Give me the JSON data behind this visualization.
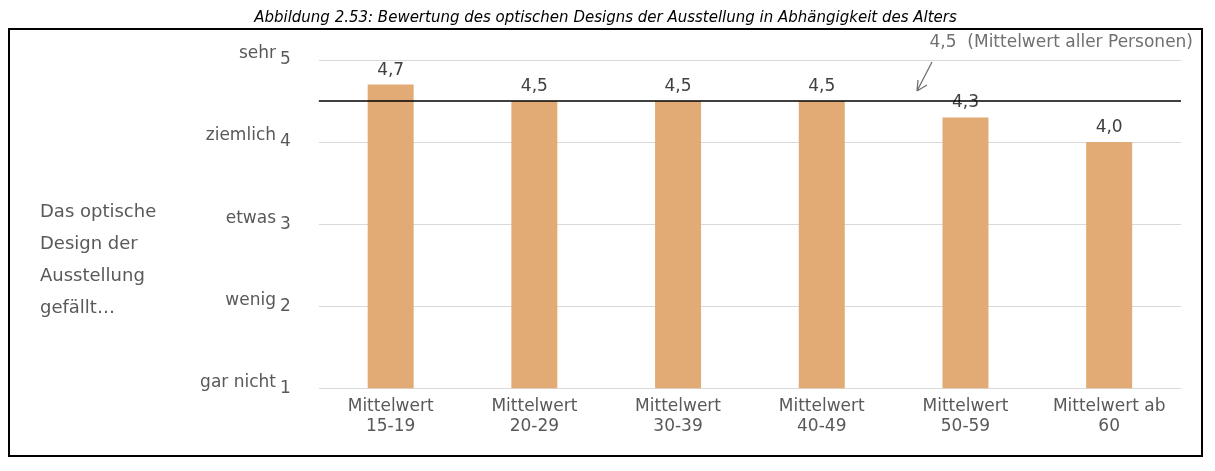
{
  "chart_data": {
    "type": "bar",
    "title": "Abbildung 2.53: Bewertung des optischen Designs der Ausstellung in Abhängigkeit des Alters",
    "categories": [
      "Mittelwert 15-19",
      "Mittelwert 20-29",
      "Mittelwert 30-39",
      "Mittelwert 40-49",
      "Mittelwert 50-59",
      "Mittelwert ab 60"
    ],
    "values": [
      4.7,
      4.5,
      4.5,
      4.5,
      4.3,
      4.0
    ],
    "value_labels": [
      "4,7",
      "4,5",
      "4,5",
      "4,5",
      "4,3",
      "4,0"
    ],
    "color": "#e2aa74",
    "ylim": [
      1,
      5
    ],
    "yticks": [
      1,
      2,
      3,
      4,
      5
    ],
    "annotations": [
      "gar nicht",
      "wenig",
      "etwas",
      "ziemlich",
      "sehr",
      "Das optische Design der Ausstellung gefällt…"
    ],
    "grid": "y",
    "ref_lines": [
      {
        "axis": "y",
        "value": 4.5,
        "label": "4,5  (Mittelwert aller Personen)",
        "color": "#000000"
      }
    ]
  }
}
